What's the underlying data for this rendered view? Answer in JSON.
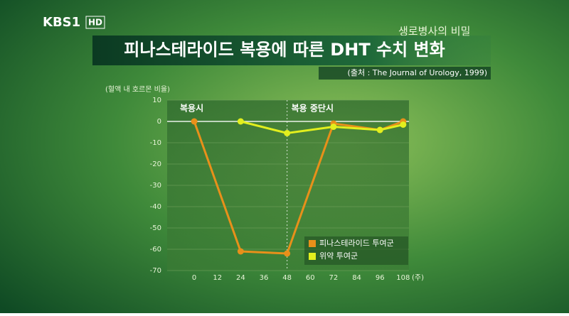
{
  "broadcast": {
    "channel": "KBS1",
    "badge": "HD",
    "program": "생로병사의 비밀"
  },
  "chart_data": {
    "type": "line",
    "title": "피나스테라이드 복용에 따른 DHT 수치 변화",
    "source": "(출처 : The Journal of Urology, 1999)",
    "ylabel": "(혈액 내 호르몬 비율)",
    "xlabel": "(주)",
    "annotations": [
      "복용시",
      "복용 중단시"
    ],
    "xlim": [
      -14,
      111
    ],
    "ylim": [
      -70,
      10
    ],
    "xticks": [
      0,
      12,
      24,
      36,
      48,
      60,
      72,
      84,
      96,
      108
    ],
    "yticks": [
      10,
      0,
      -10,
      -20,
      -30,
      -40,
      -50,
      -60,
      -70
    ],
    "grid": true,
    "series": [
      {
        "name": "피나스테라이드 투여군",
        "color": "#e8901a",
        "x": [
          0,
          24,
          48,
          72,
          96,
          108
        ],
        "values": [
          0,
          -61,
          -62,
          -1,
          -4,
          0
        ]
      },
      {
        "name": "위약 투여군",
        "color": "#e2ef1e",
        "x": [
          24,
          48,
          72,
          96,
          108
        ],
        "values": [
          0,
          -5.5,
          -2.5,
          -4,
          -1.5
        ]
      }
    ]
  }
}
